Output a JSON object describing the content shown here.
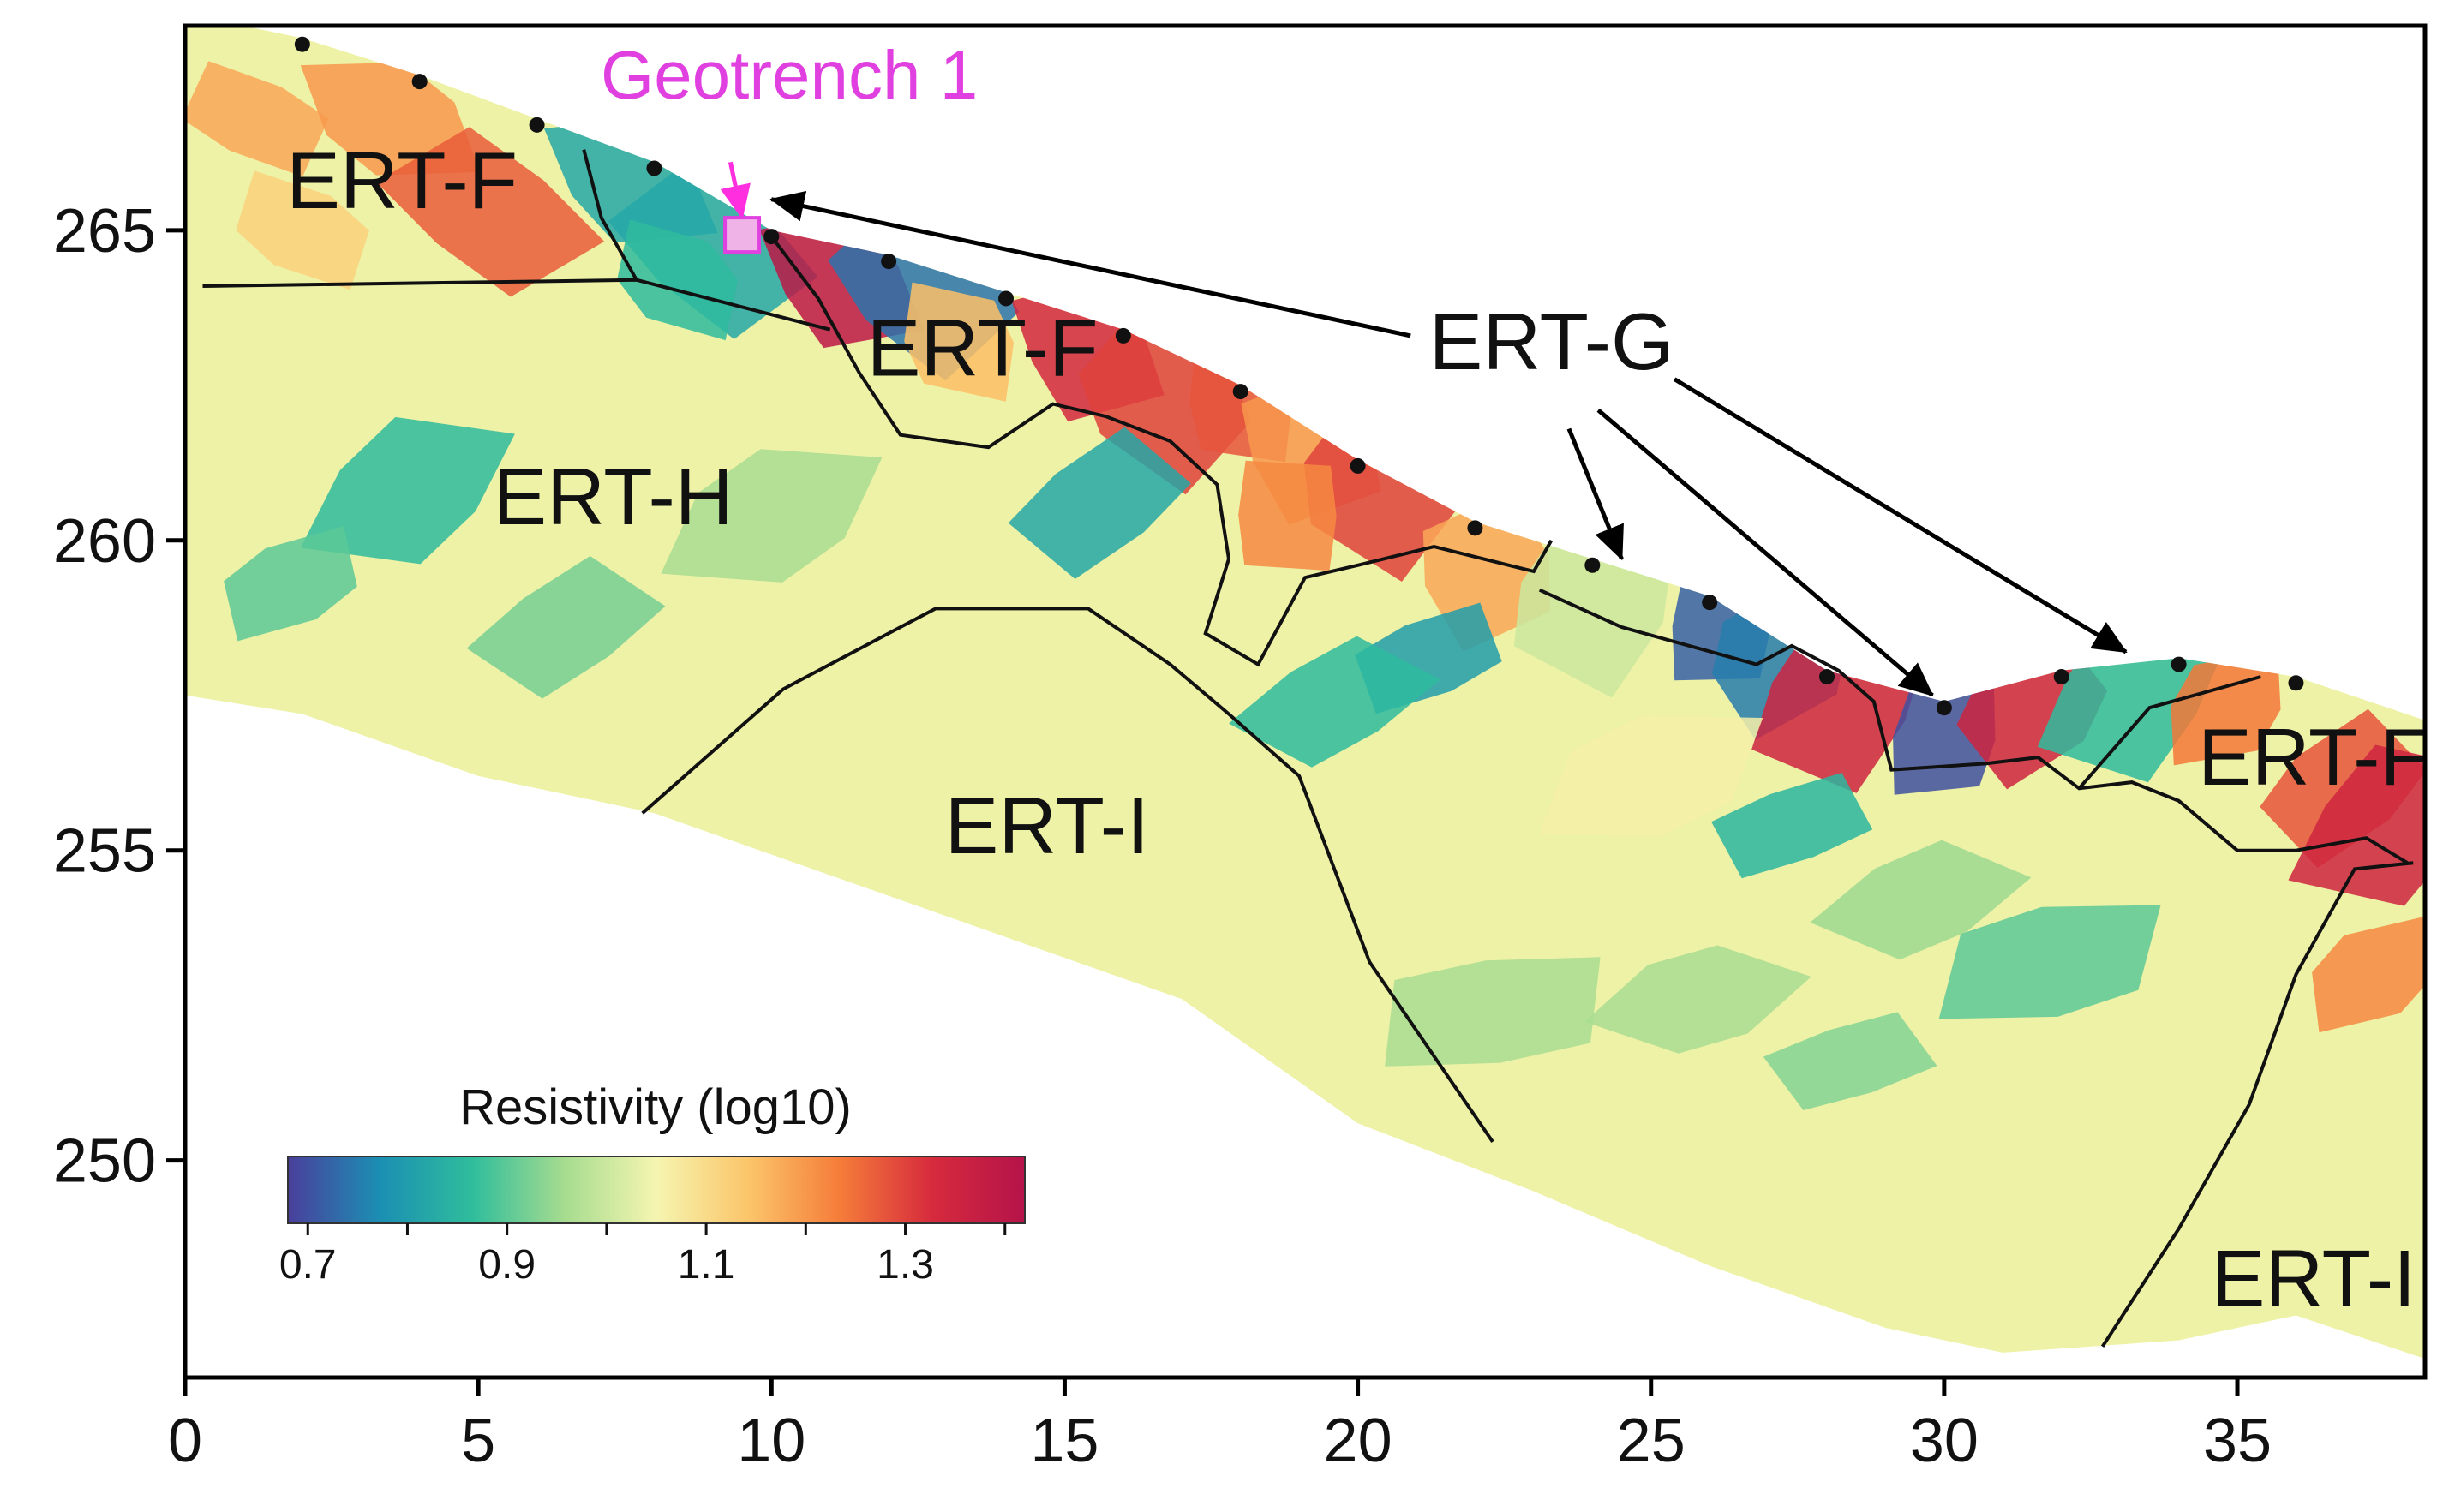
{
  "chart_data": {
    "type": "heatmap",
    "title": "",
    "xlabel": "",
    "ylabel": "",
    "xlim": [
      0,
      38.2
    ],
    "ylim": [
      246.5,
      268.3
    ],
    "x_ticks": [
      0,
      5,
      10,
      15,
      20,
      25,
      30,
      35
    ],
    "y_ticks": [
      250,
      255,
      260,
      265
    ],
    "grid": false,
    "colorbar": {
      "title": "Resistivity (log10)",
      "range": [
        0.68,
        1.42
      ],
      "ticks": [
        0.7,
        0.9,
        1.1,
        1.3
      ],
      "colors": [
        "#4a3f9c",
        "#1b8fb3",
        "#2fbd9c",
        "#a6dc8f",
        "#f5f5b0",
        "#fbc56a",
        "#f57c3a",
        "#d62a3d",
        "#b5134a"
      ],
      "placement": "bottom-left"
    },
    "electrodes": [
      {
        "x": 2,
        "y": 268.0
      },
      {
        "x": 4,
        "y": 267.4
      },
      {
        "x": 6,
        "y": 266.7
      },
      {
        "x": 8,
        "y": 266.0
      },
      {
        "x": 10,
        "y": 264.9
      },
      {
        "x": 12,
        "y": 264.5
      },
      {
        "x": 14,
        "y": 263.9
      },
      {
        "x": 16,
        "y": 263.3
      },
      {
        "x": 18,
        "y": 262.4
      },
      {
        "x": 20,
        "y": 261.2
      },
      {
        "x": 22,
        "y": 260.2
      },
      {
        "x": 24,
        "y": 259.6
      },
      {
        "x": 26,
        "y": 259.0
      },
      {
        "x": 28,
        "y": 257.8
      },
      {
        "x": 30,
        "y": 257.3
      },
      {
        "x": 32,
        "y": 257.8
      },
      {
        "x": 34,
        "y": 258.0
      },
      {
        "x": 36,
        "y": 257.7
      }
    ],
    "domain_top": [
      [
        0,
        268.5
      ],
      [
        2,
        268.1
      ],
      [
        4,
        267.5
      ],
      [
        6,
        266.8
      ],
      [
        8,
        266.1
      ],
      [
        10,
        265.0
      ],
      [
        12,
        264.6
      ],
      [
        14,
        264.0
      ],
      [
        16,
        263.4
      ],
      [
        18,
        262.5
      ],
      [
        20,
        261.3
      ],
      [
        22,
        260.3
      ],
      [
        24,
        259.7
      ],
      [
        26,
        259.1
      ],
      [
        28,
        257.9
      ],
      [
        30,
        257.4
      ],
      [
        32,
        257.9
      ],
      [
        34,
        258.1
      ],
      [
        36,
        257.8
      ],
      [
        38.2,
        257.1
      ]
    ],
    "domain_bottom": [
      [
        0,
        257.5
      ],
      [
        2,
        257.2
      ],
      [
        5,
        256.2
      ],
      [
        8,
        255.6
      ],
      [
        11,
        254.6
      ],
      [
        14,
        253.6
      ],
      [
        17,
        252.6
      ],
      [
        20,
        250.6
      ],
      [
        23,
        249.5
      ],
      [
        26,
        248.3
      ],
      [
        29,
        247.3
      ],
      [
        31,
        246.9
      ],
      [
        34,
        247.1
      ],
      [
        36,
        247.5
      ],
      [
        38.2,
        246.8
      ]
    ],
    "zones": [
      {
        "name": "ERT-F",
        "x": 3.7,
        "y": 265.7
      },
      {
        "name": "ERT-F",
        "x": 13.6,
        "y": 263.0
      },
      {
        "name": "ERT-F",
        "x": 36.3,
        "y": 256.4
      },
      {
        "name": "ERT-H",
        "x": 7.3,
        "y": 260.6
      },
      {
        "name": "ERT-I",
        "x": 14.7,
        "y": 255.3
      },
      {
        "name": "ERT-I",
        "x": 36.3,
        "y": 248.0
      },
      {
        "name": "ERT-G",
        "x": 23.3,
        "y": 263.1
      }
    ],
    "geotrench": {
      "label": "Geotrench 1",
      "x": 9.5,
      "y": 264.9
    },
    "boundaries": [
      [
        [
          0.3,
          264.1
        ],
        [
          7.7,
          264.2
        ],
        [
          11.0,
          263.4
        ]
      ],
      [
        [
          6.8,
          266.3
        ],
        [
          7.1,
          265.2
        ],
        [
          7.7,
          264.2
        ]
      ],
      [
        [
          10.0,
          264.9
        ],
        [
          10.8,
          263.9
        ],
        [
          11.5,
          262.7
        ],
        [
          12.2,
          261.7
        ],
        [
          13.7,
          261.5
        ],
        [
          14.8,
          262.2
        ],
        [
          15.7,
          262.0
        ],
        [
          16.8,
          261.6
        ],
        [
          17.6,
          260.9
        ],
        [
          17.8,
          259.7
        ],
        [
          17.4,
          258.5
        ],
        [
          18.3,
          258.0
        ],
        [
          19.1,
          259.4
        ],
        [
          20.0,
          259.6
        ],
        [
          21.3,
          259.9
        ],
        [
          23.0,
          259.5
        ],
        [
          23.3,
          260.0
        ]
      ],
      [
        [
          23.1,
          259.2
        ],
        [
          24.5,
          258.6
        ],
        [
          26.8,
          258.0
        ],
        [
          27.4,
          258.3
        ],
        [
          28.2,
          257.9
        ],
        [
          28.8,
          257.4
        ],
        [
          29.1,
          256.3
        ],
        [
          30.7,
          256.4
        ],
        [
          31.6,
          256.5
        ],
        [
          32.3,
          256.0
        ],
        [
          33.2,
          256.1
        ],
        [
          34.0,
          255.8
        ],
        [
          35.0,
          255.0
        ],
        [
          36.0,
          255.0
        ],
        [
          37.2,
          255.2
        ],
        [
          37.9,
          254.8
        ]
      ],
      [
        [
          7.8,
          255.6
        ],
        [
          10.2,
          257.6
        ],
        [
          12.8,
          258.9
        ],
        [
          15.4,
          258.9
        ],
        [
          16.8,
          258.0
        ],
        [
          17.8,
          257.2
        ],
        [
          19.0,
          256.2
        ],
        [
          20.2,
          253.2
        ],
        [
          22.3,
          250.3
        ]
      ],
      [
        [
          32.3,
          256.0
        ],
        [
          33.5,
          257.3
        ],
        [
          35.4,
          257.8
        ]
      ],
      [
        [
          32.7,
          247.0
        ],
        [
          34.0,
          248.9
        ],
        [
          35.2,
          250.9
        ],
        [
          36.0,
          253.0
        ],
        [
          37.0,
          254.7
        ],
        [
          38.0,
          254.8
        ]
      ]
    ],
    "arrows": [
      {
        "label_ref": "ERT-G",
        "from": [
          20.9,
          263.3
        ],
        "to": [
          10.0,
          265.5
        ],
        "color": "#000000"
      },
      {
        "label_ref": "ERT-G",
        "from": [
          23.6,
          261.8
        ],
        "to": [
          24.5,
          259.7
        ],
        "color": "#000000"
      },
      {
        "label_ref": "ERT-G",
        "from": [
          24.1,
          262.1
        ],
        "to": [
          29.8,
          257.5
        ],
        "color": "#000000"
      },
      {
        "label_ref": "ERT-G",
        "from": [
          25.4,
          262.6
        ],
        "to": [
          33.1,
          258.2
        ],
        "color": "#000000"
      },
      {
        "label_ref": "Geotrench 1",
        "from": [
          9.3,
          266.1
        ],
        "to": [
          9.5,
          265.2
        ],
        "color": "#ff2fe0"
      }
    ],
    "resistivity_cells": [
      {
        "x": 1.2,
        "y": 266.8,
        "v": 1.18
      },
      {
        "x": 3.5,
        "y": 266.8,
        "v": 1.2
      },
      {
        "x": 5.2,
        "y": 265.3,
        "v": 1.27
      },
      {
        "x": 2.0,
        "y": 265.0,
        "v": 1.12
      },
      {
        "x": 7.6,
        "y": 265.8,
        "v": 0.82
      },
      {
        "x": 9.0,
        "y": 264.7,
        "v": 0.82
      },
      {
        "x": 8.4,
        "y": 264.2,
        "v": 0.86
      },
      {
        "x": 11.2,
        "y": 264.2,
        "v": 1.4
      },
      {
        "x": 12.6,
        "y": 264.1,
        "v": 0.74
      },
      {
        "x": 13.2,
        "y": 263.2,
        "v": 1.15
      },
      {
        "x": 15.4,
        "y": 263.1,
        "v": 1.34
      },
      {
        "x": 16.7,
        "y": 262.3,
        "v": 1.3
      },
      {
        "x": 18.0,
        "y": 262.2,
        "v": 1.28
      },
      {
        "x": 19.2,
        "y": 261.5,
        "v": 1.2
      },
      {
        "x": 20.4,
        "y": 260.9,
        "v": 1.3
      },
      {
        "x": 18.8,
        "y": 260.4,
        "v": 1.22
      },
      {
        "x": 22.2,
        "y": 259.5,
        "v": 1.18
      },
      {
        "x": 24.0,
        "y": 259.0,
        "v": 1.0
      },
      {
        "x": 26.2,
        "y": 258.6,
        "v": 0.72
      },
      {
        "x": 27.2,
        "y": 258.1,
        "v": 0.75
      },
      {
        "x": 28.2,
        "y": 257.4,
        "v": 1.35
      },
      {
        "x": 30.0,
        "y": 256.8,
        "v": 0.7
      },
      {
        "x": 31.5,
        "y": 257.3,
        "v": 1.35
      },
      {
        "x": 33.2,
        "y": 257.5,
        "v": 0.86
      },
      {
        "x": 34.8,
        "y": 257.3,
        "v": 1.24
      },
      {
        "x": 36.8,
        "y": 256.0,
        "v": 1.28
      },
      {
        "x": 37.6,
        "y": 255.4,
        "v": 1.35
      },
      {
        "x": 37.3,
        "y": 253.0,
        "v": 1.22
      },
      {
        "x": 15.6,
        "y": 260.6,
        "v": 0.82
      },
      {
        "x": 3.8,
        "y": 260.8,
        "v": 0.86
      },
      {
        "x": 1.8,
        "y": 259.3,
        "v": 0.9
      },
      {
        "x": 6.5,
        "y": 258.6,
        "v": 0.92
      },
      {
        "x": 10.0,
        "y": 260.4,
        "v": 0.96
      },
      {
        "x": 21.2,
        "y": 258.1,
        "v": 0.8
      },
      {
        "x": 19.6,
        "y": 257.4,
        "v": 0.86
      },
      {
        "x": 25.0,
        "y": 256.2,
        "v": 1.06
      },
      {
        "x": 27.4,
        "y": 255.4,
        "v": 0.85
      },
      {
        "x": 29.6,
        "y": 254.2,
        "v": 0.95
      },
      {
        "x": 31.8,
        "y": 253.2,
        "v": 0.9
      },
      {
        "x": 28.4,
        "y": 251.6,
        "v": 0.93
      },
      {
        "x": 25.8,
        "y": 252.6,
        "v": 0.96
      },
      {
        "x": 22.3,
        "y": 252.4,
        "v": 0.96
      }
    ]
  }
}
